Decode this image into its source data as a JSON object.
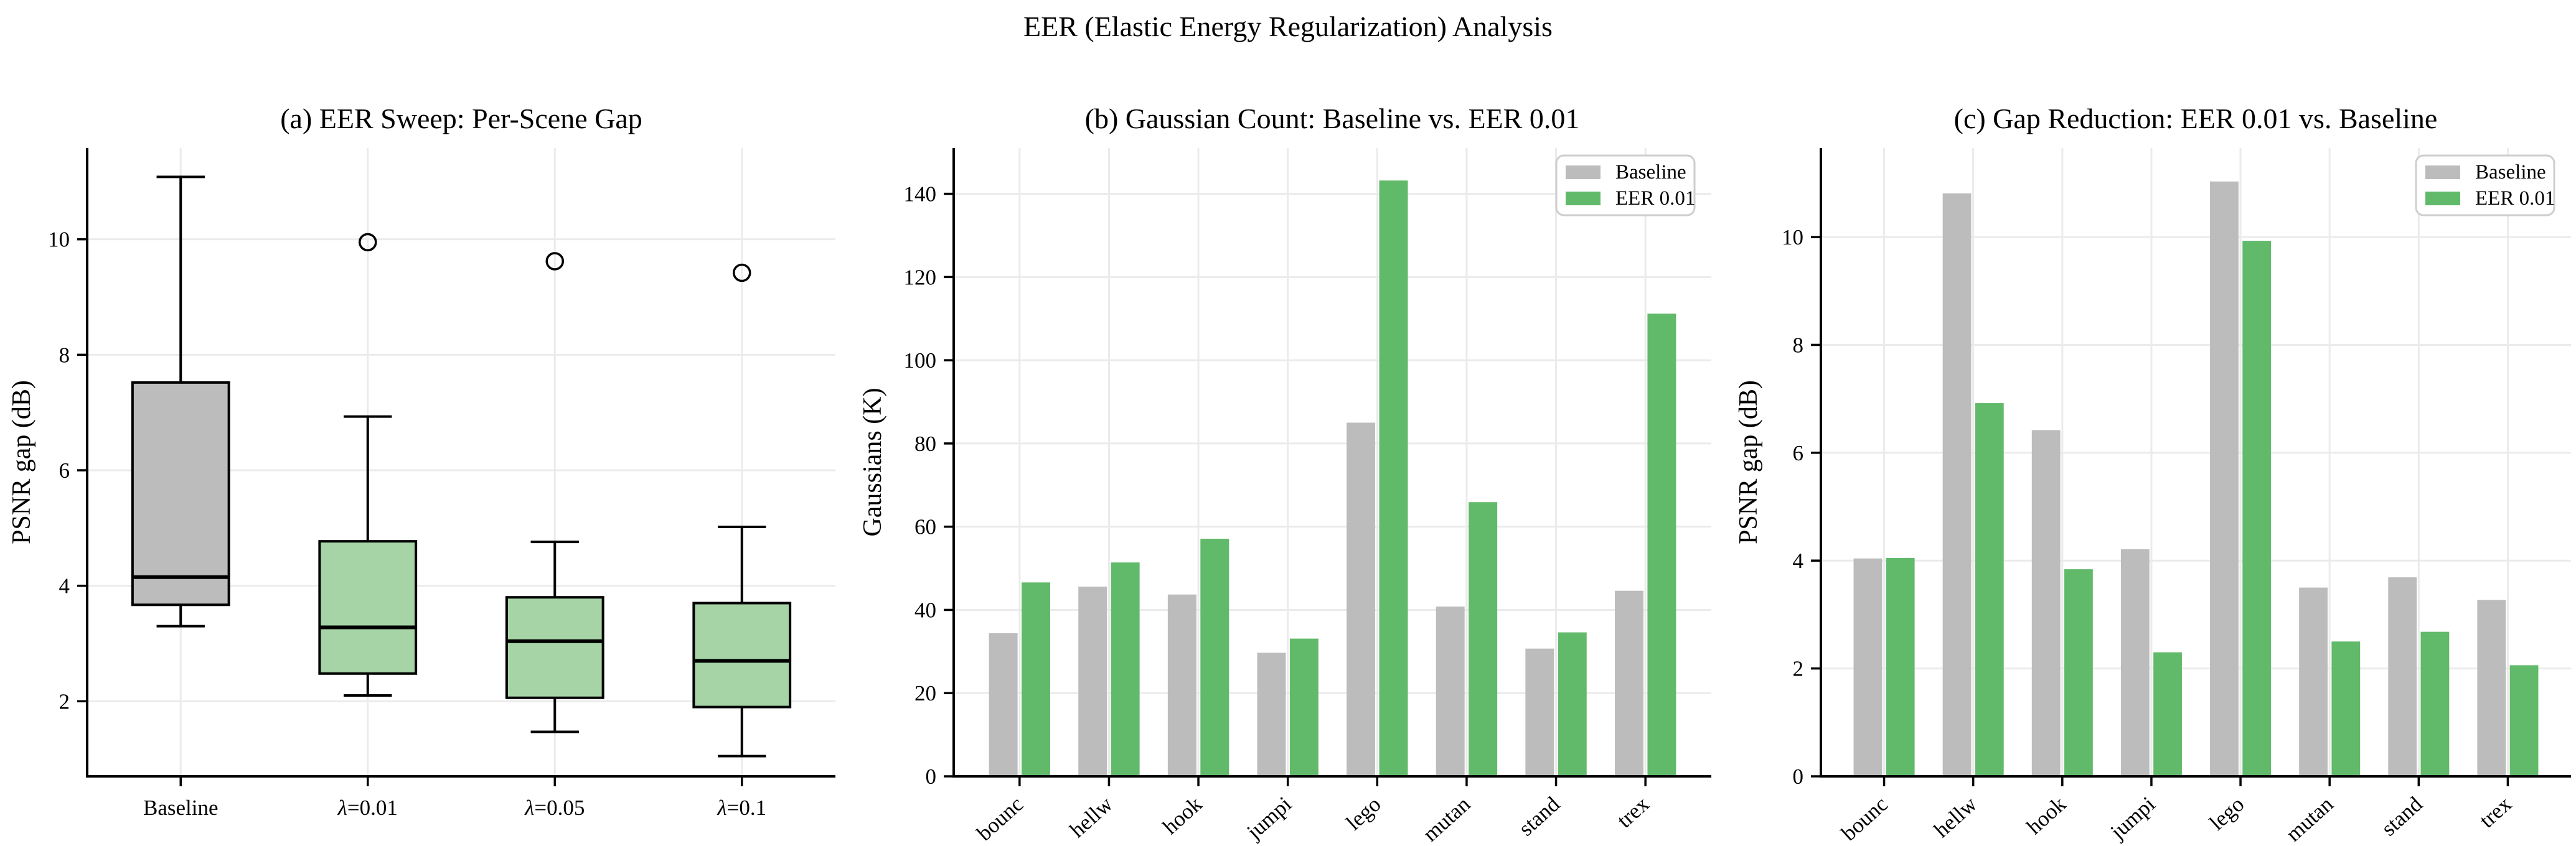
{
  "figure": {
    "suptitle": "EER (Elastic Energy Regularization) Analysis",
    "background": "#ffffff",
    "colors": {
      "baseline_gray": "#bcbcbc",
      "eer_green": "#61ba6a",
      "box_green": "#a6d4a6",
      "grid": "#ebebeb",
      "spine": "#000000",
      "legend_border": "#cecece"
    }
  },
  "chart_data": [
    {
      "id": "a",
      "type": "box",
      "title": "(a) EER Sweep: Per-Scene Gap",
      "ylabel": "PSNR gap (dB)",
      "categories": [
        "Baseline",
        "λ=0.01",
        "λ=0.05",
        "λ=0.1"
      ],
      "yticks": [
        2,
        4,
        6,
        8,
        10
      ],
      "ylim": [
        0.7,
        11.58
      ],
      "grid": true,
      "rotate_xticks": false,
      "boxes": [
        {
          "label": "Baseline",
          "whislo": 3.3,
          "q1": 3.67,
          "med": 4.15,
          "q3": 7.52,
          "whishi": 11.08,
          "fliers": [],
          "fill": "#bcbcbc"
        },
        {
          "label": "λ=0.01",
          "whislo": 2.1,
          "q1": 2.48,
          "med": 3.28,
          "q3": 4.77,
          "whishi": 6.93,
          "fliers": [
            9.95
          ],
          "fill": "#a6d4a6"
        },
        {
          "label": "λ=0.05",
          "whislo": 1.47,
          "q1": 2.06,
          "med": 3.04,
          "q3": 3.8,
          "whishi": 4.76,
          "fliers": [
            9.62
          ],
          "fill": "#a6d4a6"
        },
        {
          "label": "λ=0.1",
          "whislo": 1.05,
          "q1": 1.9,
          "med": 2.7,
          "q3": 3.7,
          "whishi": 5.02,
          "fliers": [
            9.42
          ],
          "fill": "#a6d4a6"
        }
      ]
    },
    {
      "id": "b",
      "type": "bar",
      "title": "(b) Gaussian Count: Baseline vs. EER 0.01",
      "ylabel": "Gaussians (K)",
      "categories": [
        "bounc",
        "hellw",
        "hook",
        "jumpi",
        "lego",
        "mutan",
        "stand",
        "trex"
      ],
      "yticks": [
        0,
        20,
        40,
        60,
        80,
        100,
        120,
        140
      ],
      "ylim": [
        0,
        151
      ],
      "grid": true,
      "rotate_xticks": true,
      "legend": [
        "Baseline",
        "EER 0.01"
      ],
      "series": [
        {
          "name": "Baseline",
          "color": "#bcbcbc",
          "values": [
            34.4,
            45.6,
            43.7,
            29.7,
            85.0,
            40.8,
            30.7,
            44.6
          ]
        },
        {
          "name": "EER 0.01",
          "color": "#61ba6a",
          "values": [
            46.6,
            51.4,
            57.1,
            33.1,
            143.2,
            65.9,
            34.6,
            111.2
          ]
        }
      ]
    },
    {
      "id": "c",
      "type": "bar",
      "title": "(c) Gap Reduction: EER 0.01 vs. Baseline",
      "ylabel": "PSNR gap (dB)",
      "categories": [
        "bounc",
        "hellw",
        "hook",
        "jumpi",
        "lego",
        "mutan",
        "stand",
        "trex"
      ],
      "yticks": [
        0,
        2,
        4,
        6,
        8,
        10
      ],
      "ylim": [
        0,
        11.65
      ],
      "grid": true,
      "rotate_xticks": true,
      "legend": [
        "Baseline",
        "EER 0.01"
      ],
      "series": [
        {
          "name": "Baseline",
          "color": "#bcbcbc",
          "values": [
            4.04,
            10.81,
            6.42,
            4.21,
            11.03,
            3.5,
            3.69,
            3.27
          ]
        },
        {
          "name": "EER 0.01",
          "color": "#61ba6a",
          "values": [
            4.05,
            6.92,
            3.84,
            2.3,
            9.93,
            2.5,
            2.68,
            2.06
          ]
        }
      ]
    }
  ]
}
